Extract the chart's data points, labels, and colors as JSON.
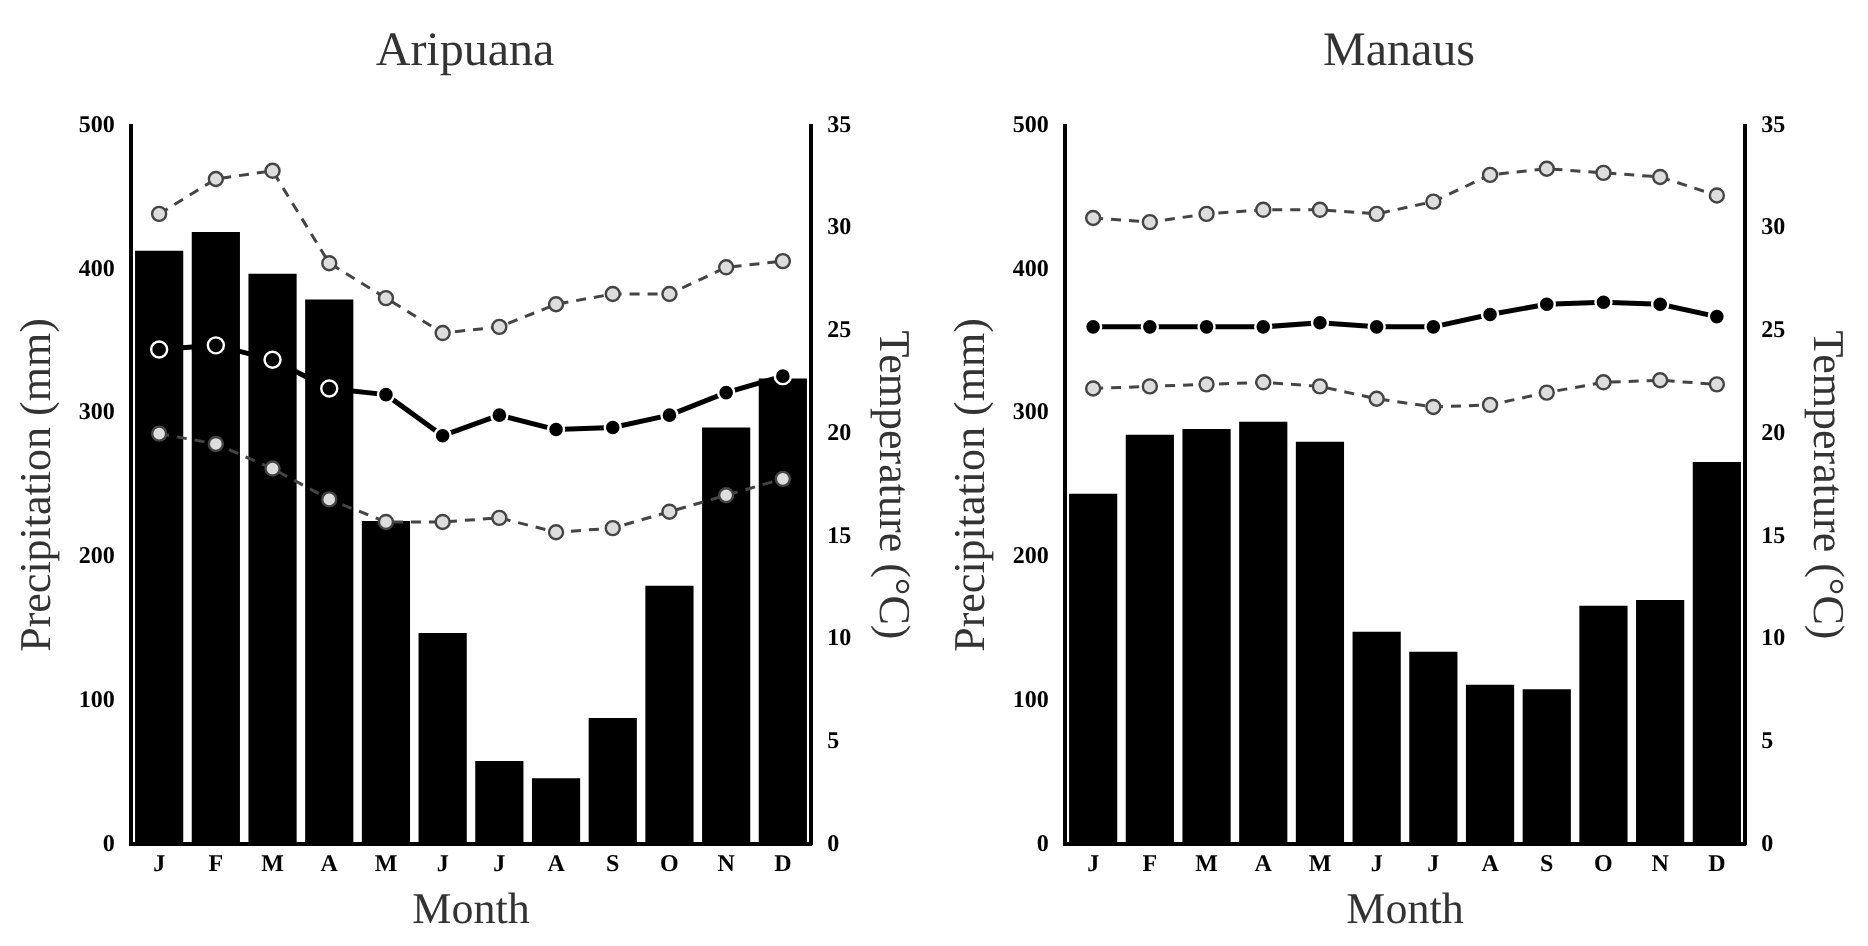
{
  "chart_data": [
    {
      "type": "bar",
      "title": "Aripuana",
      "xlabel": "Month",
      "ylabel": "Precipitation (mm)",
      "y2label": "Temperature (°C)",
      "categories": [
        "J",
        "F",
        "M",
        "A",
        "M",
        "J",
        "J",
        "A",
        "S",
        "O",
        "N",
        "D"
      ],
      "ylim": [
        0,
        500
      ],
      "yticks": [
        0,
        100,
        200,
        300,
        400,
        500
      ],
      "y2lim": [
        0,
        35
      ],
      "y2ticks": [
        0,
        5,
        10,
        15,
        20,
        25,
        30,
        35
      ],
      "grid": false,
      "legend": false,
      "series": [
        {
          "color": "#000000",
          "values": [
            413,
            426,
            397,
            379,
            225,
            147,
            58,
            46,
            88,
            180,
            290,
            324
          ]
        },
        {
          "type": "line",
          "axis": "y2",
          "color": "#000000",
          "marker": "circle",
          "line_style": "solid",
          "values": [
            24.1,
            24.3,
            23.6,
            22.2,
            21.9,
            19.9,
            20.9,
            20.2,
            20.3,
            20.9,
            22.0,
            22.8
          ]
        },
        {
          "type": "line",
          "axis": "y2",
          "color": "#444444",
          "marker": "circle",
          "line_style": "dashed",
          "values": [
            30.7,
            32.4,
            32.8,
            28.3,
            26.6,
            24.9,
            25.2,
            26.3,
            26.8,
            26.8,
            28.1,
            28.4
          ]
        },
        {
          "type": "line",
          "axis": "y2",
          "color": "#444444",
          "marker": "circle",
          "line_style": "dashed",
          "values": [
            20.0,
            19.5,
            18.3,
            16.8,
            15.7,
            15.7,
            15.9,
            15.2,
            15.4,
            16.2,
            17.0,
            17.8
          ]
        }
      ]
    },
    {
      "type": "bar",
      "title": "Manaus",
      "xlabel": "Month",
      "ylabel": "Precipitation (mm)",
      "y2label": "Temperature (°C)",
      "categories": [
        "J",
        "F",
        "M",
        "A",
        "M",
        "J",
        "J",
        "A",
        "S",
        "O",
        "N",
        "D"
      ],
      "ylim": [
        0,
        500
      ],
      "yticks": [
        0,
        100,
        200,
        300,
        400,
        500
      ],
      "y2lim": [
        0,
        35
      ],
      "y2ticks": [
        0,
        5,
        10,
        15,
        20,
        25,
        30,
        35
      ],
      "grid": false,
      "legend": false,
      "series": [
        {
          "color": "#000000",
          "values": [
            244,
            285,
            289,
            294,
            280,
            148,
            134,
            111,
            108,
            166,
            170,
            266
          ]
        },
        {
          "type": "line",
          "axis": "y2",
          "color": "#000000",
          "marker": "circle",
          "line_style": "solid",
          "values": [
            25.2,
            25.2,
            25.2,
            25.2,
            25.4,
            25.2,
            25.2,
            25.8,
            26.3,
            26.4,
            26.3,
            25.7
          ]
        },
        {
          "type": "line",
          "axis": "y2",
          "color": "#444444",
          "marker": "circle",
          "line_style": "dashed",
          "values": [
            30.5,
            30.3,
            30.7,
            30.9,
            30.9,
            30.7,
            31.3,
            32.6,
            32.9,
            32.7,
            32.5,
            31.6
          ]
        },
        {
          "type": "line",
          "axis": "y2",
          "color": "#444444",
          "marker": "circle",
          "line_style": "dashed",
          "values": [
            22.2,
            22.3,
            22.4,
            22.5,
            22.3,
            21.7,
            21.3,
            21.4,
            22.0,
            22.5,
            22.6,
            22.4
          ]
        }
      ]
    }
  ]
}
